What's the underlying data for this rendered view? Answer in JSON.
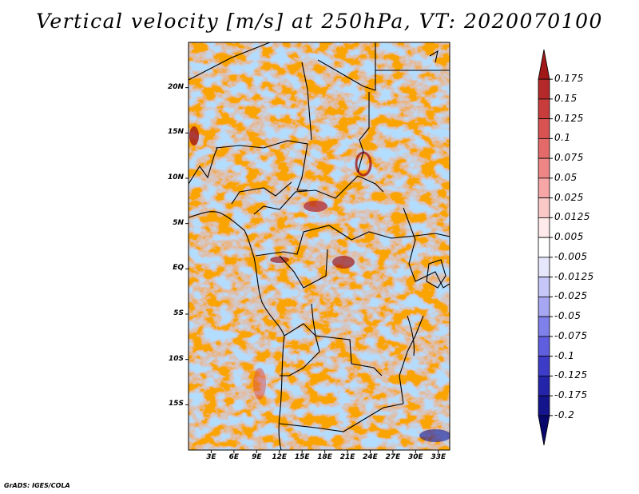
{
  "title": "Vertical velocity [m/s] at 250hPa, VT: 2020070100",
  "credit": "GrADS: IGES/COLA",
  "map": {
    "lat_ticks": [
      {
        "label": "20N",
        "value": 20
      },
      {
        "label": "15N",
        "value": 15
      },
      {
        "label": "10N",
        "value": 10
      },
      {
        "label": "5N",
        "value": 5
      },
      {
        "label": "EQ",
        "value": 0
      },
      {
        "label": "5S",
        "value": -5
      },
      {
        "label": "10S",
        "value": -10
      },
      {
        "label": "15S",
        "value": -15
      }
    ],
    "lon_ticks": [
      {
        "label": "3E",
        "value": 3
      },
      {
        "label": "6E",
        "value": 6
      },
      {
        "label": "9E",
        "value": 9
      },
      {
        "label": "12E",
        "value": 12
      },
      {
        "label": "15E",
        "value": 15
      },
      {
        "label": "18E",
        "value": 18
      },
      {
        "label": "21E",
        "value": 21
      },
      {
        "label": "24E",
        "value": 24
      },
      {
        "label": "27E",
        "value": 27
      },
      {
        "label": "30E",
        "value": 30
      },
      {
        "label": "33E",
        "value": 33
      }
    ],
    "lon_range": [
      0,
      34.5
    ],
    "lat_range": [
      -20,
      25
    ]
  },
  "colorbar": {
    "labels": [
      "0.175",
      "0.15",
      "0.125",
      "0.1",
      "0.075",
      "0.05",
      "0.025",
      "0.0125",
      "0.005",
      "-0.005",
      "-0.0125",
      "-0.025",
      "-0.05",
      "-0.075",
      "-0.1",
      "-0.125",
      "-0.175",
      "-0.2"
    ],
    "colors": [
      "#a01818",
      "#b42a2a",
      "#c83c3c",
      "#d85252",
      "#e46a6a",
      "#ee8686",
      "#f6a6a6",
      "#fbc8c8",
      "#feeaea",
      "#ffffff",
      "#e6e6fc",
      "#c6c6f8",
      "#a6a6f2",
      "#8080ea",
      "#5e5ede",
      "#3c3cc8",
      "#2424aa",
      "#14148c",
      "#08086c"
    ]
  }
}
